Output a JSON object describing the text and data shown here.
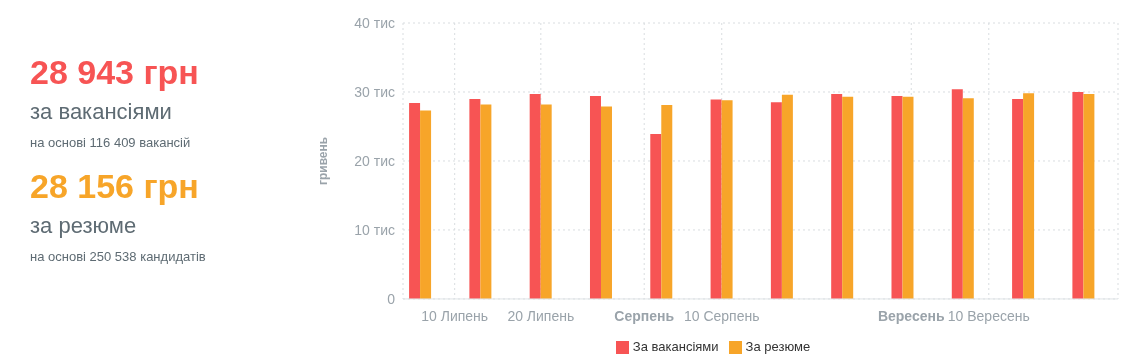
{
  "chart_data": {
    "type": "bar",
    "ylabel": "гривень",
    "x": [
      "--07-06",
      "--07-13",
      "--07-20",
      "--07-27",
      "--08-03",
      "--08-10",
      "--08-17",
      "--08-24",
      "--08-31",
      "--09-07",
      "--09-14",
      "--09-21"
    ],
    "series": [
      {
        "name": "За вакансіями",
        "color": "#f75454",
        "values": [
          28.4,
          29.0,
          29.7,
          29.4,
          23.9,
          28.9,
          28.5,
          29.7,
          29.4,
          30.4,
          29.0,
          30.0
        ]
      },
      {
        "name": "За резюме",
        "color": "#f7a529",
        "values": [
          27.3,
          28.2,
          28.2,
          27.9,
          28.1,
          28.8,
          29.6,
          29.3,
          29.3,
          29.1,
          29.8,
          29.7
        ]
      }
    ],
    "xlim": [
      "--07-04",
      "--09-25"
    ],
    "xticks": [
      {
        "value": "--07-10",
        "label": "10 Липень"
      },
      {
        "value": "--07-20",
        "label": "20 Липень"
      },
      {
        "value": "--08-01",
        "label": "Серпень"
      },
      {
        "value": "--08-10",
        "label": "10 Серпень"
      },
      {
        "value": "--09-01",
        "label": "Вересень"
      },
      {
        "value": "--09-10",
        "label": "10 Вересень"
      }
    ],
    "ylim": [
      0,
      40
    ],
    "yticks": [
      0,
      {
        "value": 10,
        "label": "10 тис"
      },
      {
        "value": 20,
        "label": "20 тис"
      },
      {
        "value": 30,
        "label": "30 тис"
      },
      {
        "value": 40,
        "label": "40 тис"
      }
    ],
    "grid": true,
    "legend": "bottom",
    "annotations": [
      "28 943 грн",
      "за вакансіями",
      "на основі 116 409 вакансій",
      "28 156 грн",
      "за резюме",
      "на основі 250 538 кандидатів"
    ]
  }
}
